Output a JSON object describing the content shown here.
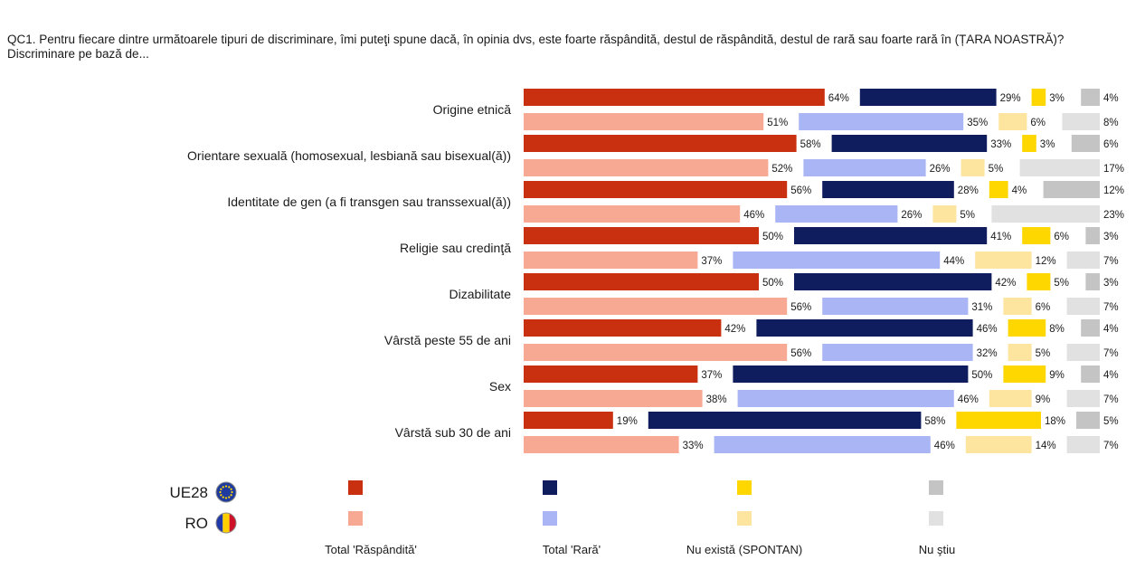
{
  "question": "QC1. Pentru fiecare dintre următoarele tipuri de discriminare, îmi puteţi spune dacă, în opinia dvs, este foarte răspândită, destul de răspândită, destul de rară sau foarte rară în (ȚARA NOASTRĂ)? Discriminare pe bază de...",
  "chart_data": {
    "type": "bar",
    "orientation": "horizontal-stacked",
    "categories": [
      "Origine etnică",
      "Orientare sexuală (homosexual, lesbiană sau bisexual(ă))",
      "Identitate de gen (a fi transgen sau transsexual(ă))",
      "Religie sau credinţă",
      "Dizabilitate",
      "Vârstă peste 55 de ani",
      "Sex",
      "Vârstă sub 30 de ani"
    ],
    "groups": [
      {
        "name": "UE28",
        "icon": "eu-flag-icon"
      },
      {
        "name": "RO",
        "icon": "romania-flag-icon"
      }
    ],
    "series": [
      {
        "name": "Total 'Răspândită'",
        "colors": {
          "UE28": "#c9300f",
          "RO": "#f7a994"
        },
        "values": {
          "UE28": [
            64,
            58,
            56,
            50,
            50,
            42,
            37,
            19
          ],
          "RO": [
            51,
            52,
            46,
            37,
            56,
            56,
            38,
            33
          ]
        }
      },
      {
        "name": "Total 'Rară'",
        "colors": {
          "UE28": "#0f1d5e",
          "RO": "#a9b5f5"
        },
        "values": {
          "UE28": [
            29,
            33,
            28,
            41,
            42,
            46,
            50,
            58
          ],
          "RO": [
            35,
            26,
            26,
            44,
            31,
            32,
            46,
            46
          ]
        }
      },
      {
        "name": "Nu există (SPONTAN)",
        "colors": {
          "UE28": "#ffd700",
          "RO": "#fde5a0"
        },
        "values": {
          "UE28": [
            3,
            3,
            4,
            6,
            5,
            8,
            9,
            18
          ],
          "RO": [
            6,
            5,
            5,
            12,
            6,
            5,
            9,
            14
          ]
        }
      },
      {
        "name": "Nu ştiu",
        "colors": {
          "UE28": "#c4c4c4",
          "RO": "#e1e1e1"
        },
        "values": {
          "UE28": [
            4,
            6,
            12,
            3,
            3,
            4,
            4,
            5
          ],
          "RO": [
            8,
            17,
            23,
            7,
            7,
            7,
            7,
            7
          ]
        }
      }
    ],
    "value_suffix": "%",
    "legend_position": "bottom"
  }
}
